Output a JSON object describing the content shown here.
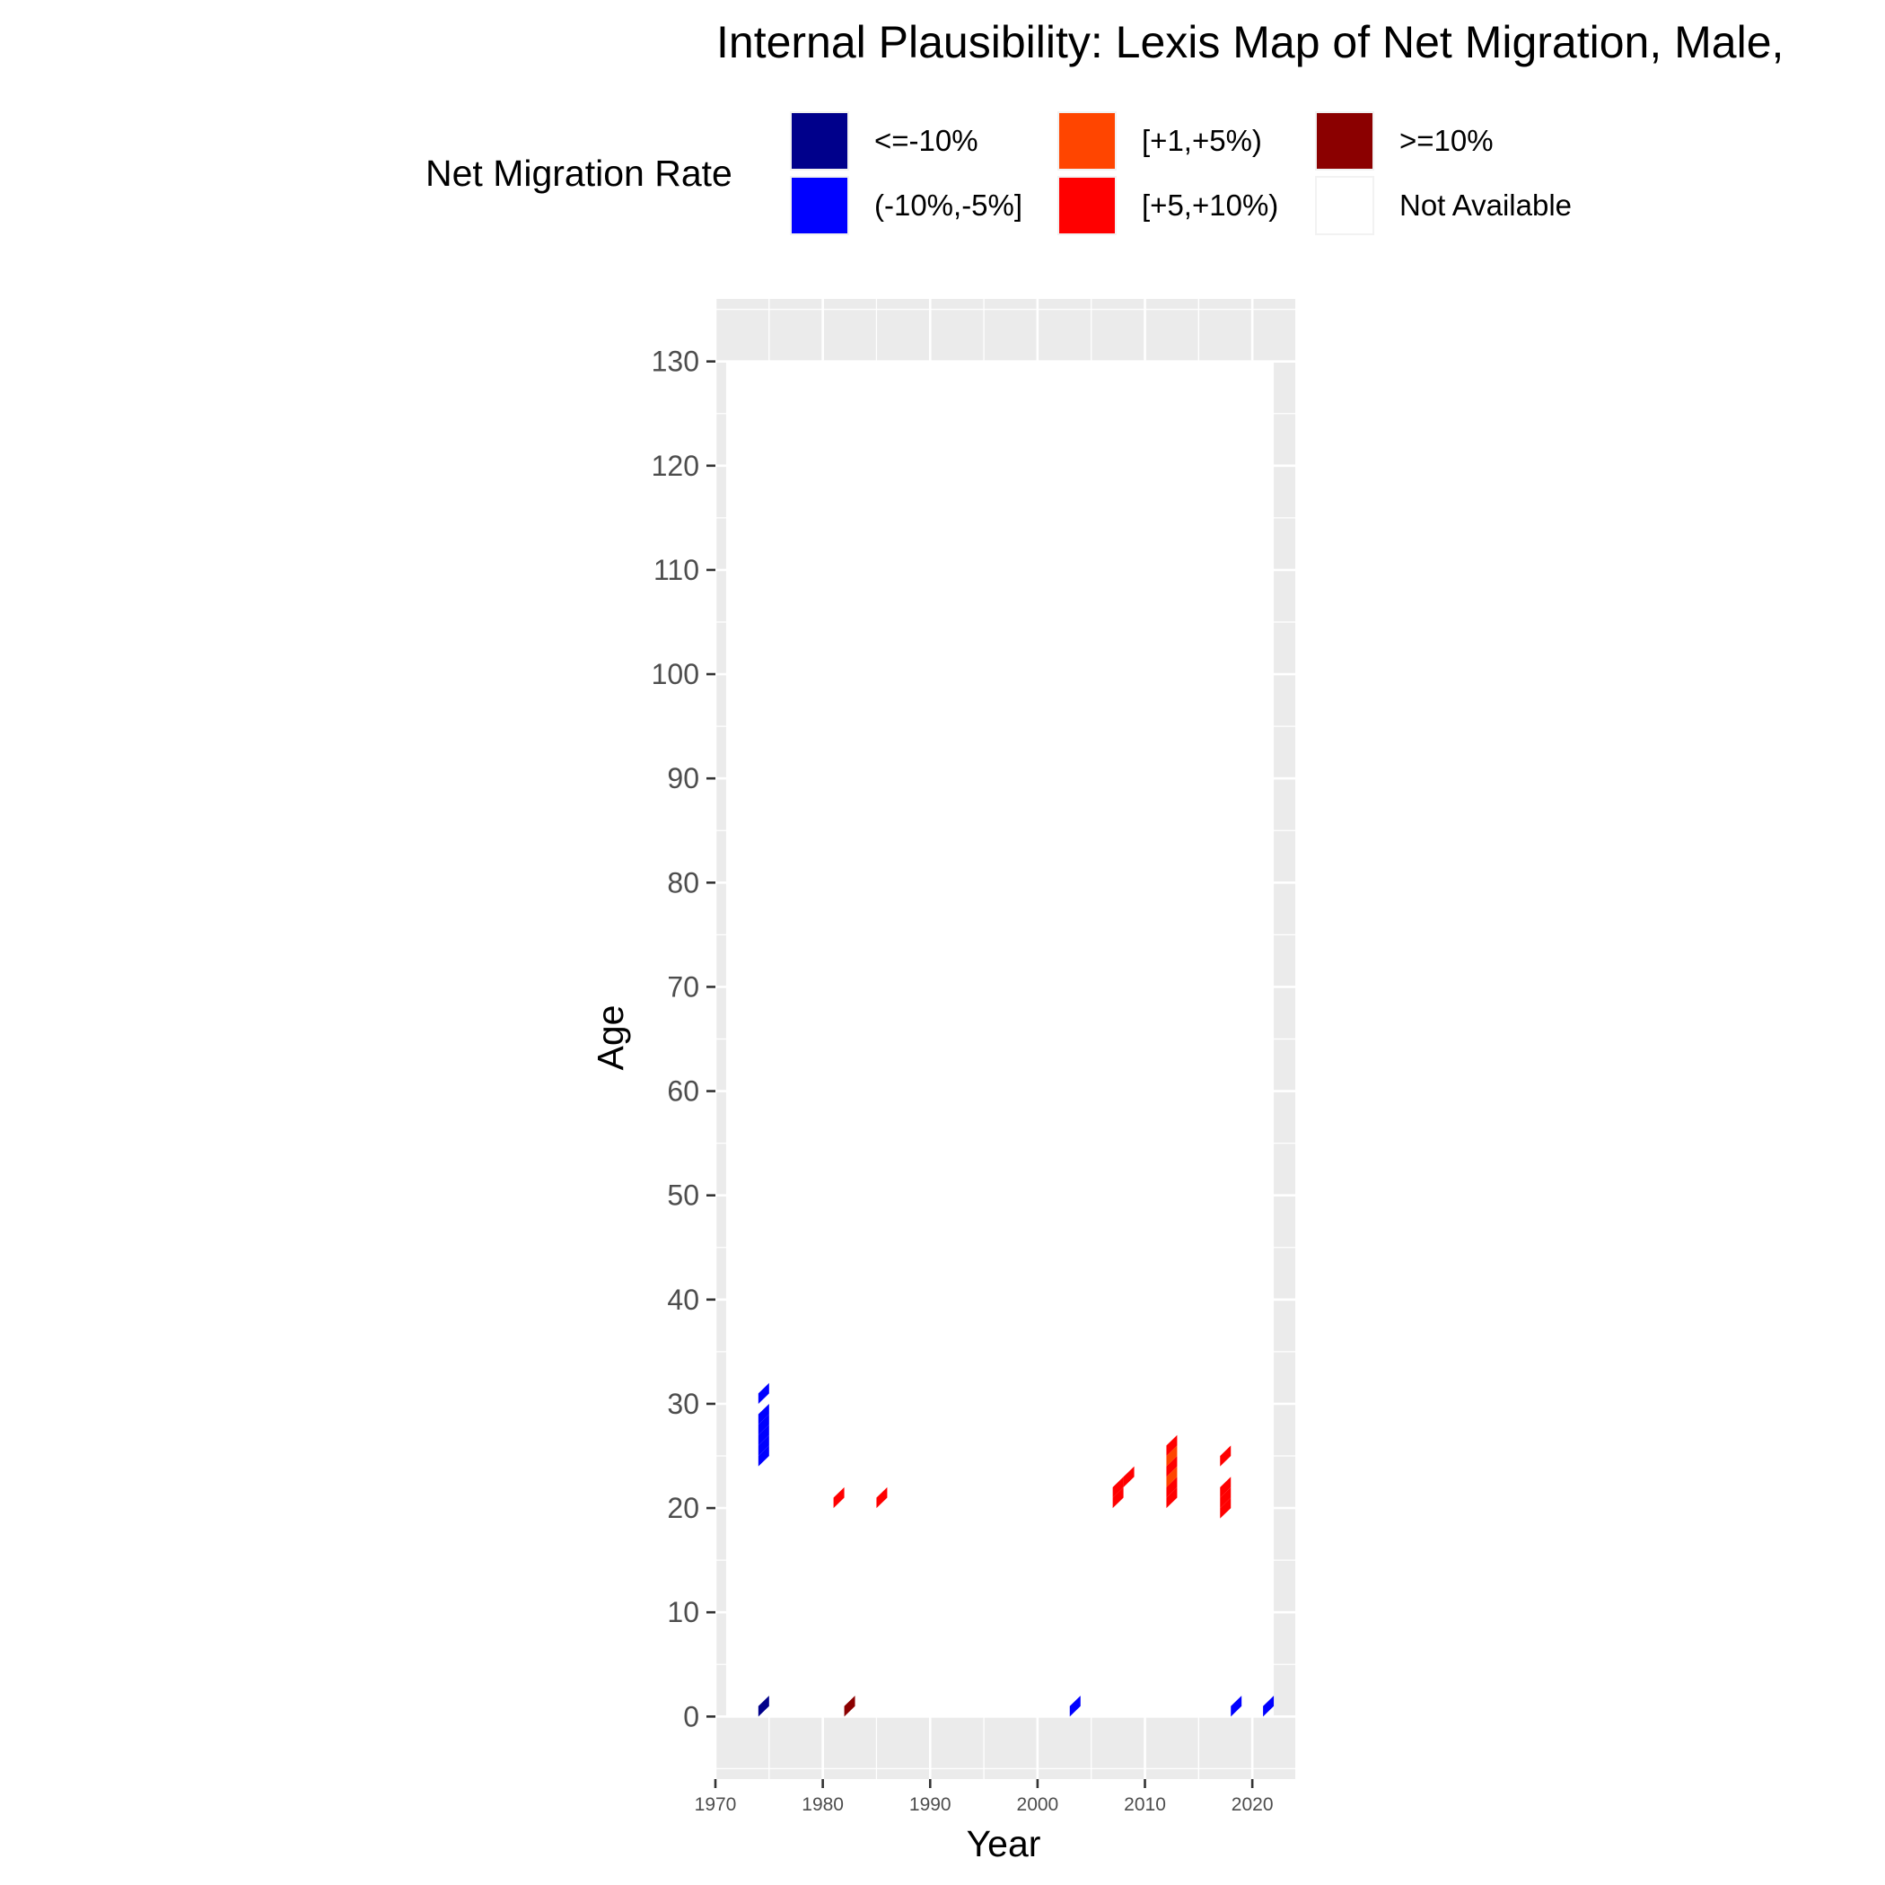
{
  "chart_data": {
    "type": "heatmap",
    "title": "Internal Plausibility: Lexis Map of Net Migration, Male,",
    "xlabel": "Year",
    "ylabel": "Age",
    "xlim": [
      1970,
      2024
    ],
    "ylim": [
      -6,
      136
    ],
    "x_ticks": [
      1970,
      1980,
      1990,
      2000,
      2010,
      2020
    ],
    "y_ticks": [
      0,
      10,
      20,
      30,
      40,
      50,
      60,
      70,
      80,
      90,
      100,
      110,
      120,
      130
    ],
    "data_extent": {
      "x": [
        1971,
        2022
      ],
      "y": [
        0,
        130
      ]
    },
    "grid": true,
    "legend": {
      "title": "Net Migration Rate",
      "position": "top",
      "items": [
        {
          "label": "<=-10%",
          "color": "#00008B"
        },
        {
          "label": "(-10%,-5%]",
          "color": "#0000FF"
        },
        {
          "label": "[+1,+5%)",
          "color": "#FF4500"
        },
        {
          "label": "[+5,+10%)",
          "color": "#FF0000"
        },
        {
          "label": ">=10%",
          "color": "#8B0000"
        },
        {
          "label": "Not Available",
          "color": "#FFFFFF"
        }
      ]
    },
    "cells": [
      {
        "year": 1975,
        "age": 0,
        "category": "<=-10%"
      },
      {
        "year": 1975,
        "age": 24,
        "category": "(-10%,-5%]"
      },
      {
        "year": 1975,
        "age": 25,
        "category": "(-10%,-5%]"
      },
      {
        "year": 1975,
        "age": 26,
        "category": "(-10%,-5%]"
      },
      {
        "year": 1975,
        "age": 27,
        "category": "(-10%,-5%]"
      },
      {
        "year": 1975,
        "age": 28,
        "category": "(-10%,-5%]"
      },
      {
        "year": 1975,
        "age": 30,
        "category": "(-10%,-5%]"
      },
      {
        "year": 1982,
        "age": 20,
        "category": "[+5,+10%)"
      },
      {
        "year": 1983,
        "age": 0,
        "category": ">=10%"
      },
      {
        "year": 1986,
        "age": 20,
        "category": "[+5,+10%)"
      },
      {
        "year": 2004,
        "age": 0,
        "category": "(-10%,-5%]"
      },
      {
        "year": 2008,
        "age": 20,
        "category": "[+5,+10%)"
      },
      {
        "year": 2008,
        "age": 21,
        "category": "[+5,+10%)"
      },
      {
        "year": 2009,
        "age": 22,
        "category": "[+5,+10%)"
      },
      {
        "year": 2013,
        "age": 20,
        "category": "[+5,+10%)"
      },
      {
        "year": 2013,
        "age": 21,
        "category": "[+5,+10%)"
      },
      {
        "year": 2013,
        "age": 22,
        "category": "[+1,+5%)"
      },
      {
        "year": 2013,
        "age": 23,
        "category": "[+5,+10%)"
      },
      {
        "year": 2013,
        "age": 24,
        "category": "[+1,+5%)"
      },
      {
        "year": 2013,
        "age": 25,
        "category": "[+5,+10%)"
      },
      {
        "year": 2018,
        "age": 19,
        "category": "[+5,+10%)"
      },
      {
        "year": 2018,
        "age": 20,
        "category": "[+5,+10%)"
      },
      {
        "year": 2018,
        "age": 21,
        "category": "[+5,+10%)"
      },
      {
        "year": 2018,
        "age": 24,
        "category": "[+5,+10%)"
      },
      {
        "year": 2019,
        "age": 0,
        "category": "(-10%,-5%]"
      },
      {
        "year": 2022,
        "age": 0,
        "category": "(-10%,-5%]"
      }
    ]
  }
}
